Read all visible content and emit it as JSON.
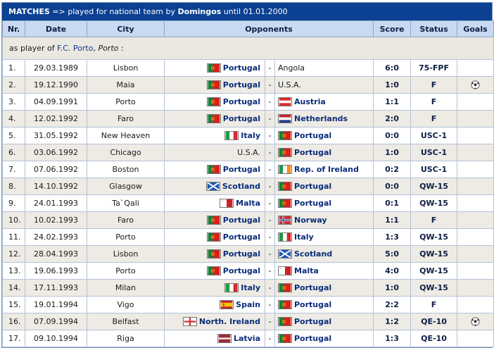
{
  "title": {
    "label": "MATCHES",
    "arrow": " => played for national team by ",
    "player": "Domingos",
    "until": " until 01.01.2000"
  },
  "columns": [
    "Nr.",
    "Date",
    "City",
    "Opponents",
    "Score",
    "Status",
    "Goals"
  ],
  "section": {
    "prefix": "as player of ",
    "club": "F.C. Porto",
    "sep": ", ",
    "city": "Porto",
    "suffix": " :"
  },
  "rows": [
    {
      "nr": "1.",
      "date": "29.03.1989",
      "city": "Lisbon",
      "home": "Portugal",
      "home_flag": "flag-portugal-icon",
      "away": "Angola",
      "away_flag": "",
      "score": "6:0",
      "status": "75-FPF",
      "goal": false
    },
    {
      "nr": "2.",
      "date": "19.12.1990",
      "city": "Maia",
      "home": "Portugal",
      "home_flag": "flag-portugal-icon",
      "away": "U.S.A.",
      "away_flag": "",
      "score": "1:0",
      "status": "F",
      "goal": true
    },
    {
      "nr": "3.",
      "date": "04.09.1991",
      "city": "Porto",
      "home": "Portugal",
      "home_flag": "flag-portugal-icon",
      "away": "Austria",
      "away_flag": "flag-austria-icon",
      "score": "1:1",
      "status": "F",
      "goal": false
    },
    {
      "nr": "4.",
      "date": "12.02.1992",
      "city": "Faro",
      "home": "Portugal",
      "home_flag": "flag-portugal-icon",
      "away": "Netherlands",
      "away_flag": "flag-netherlands-icon",
      "score": "2:0",
      "status": "F",
      "goal": false
    },
    {
      "nr": "5.",
      "date": "31.05.1992",
      "city": "New Heaven",
      "home": "Italy",
      "home_flag": "flag-italy-icon",
      "away": "Portugal",
      "away_flag": "flag-portugal-icon",
      "score": "0:0",
      "status": "USC-1",
      "goal": false
    },
    {
      "nr": "6.",
      "date": "03.06.1992",
      "city": "Chicago",
      "home": "U.S.A.",
      "home_flag": "",
      "away": "Portugal",
      "away_flag": "flag-portugal-icon",
      "score": "1:0",
      "status": "USC-1",
      "goal": false
    },
    {
      "nr": "7.",
      "date": "07.06.1992",
      "city": "Boston",
      "home": "Portugal",
      "home_flag": "flag-portugal-icon",
      "away": "Rep. of Ireland",
      "away_flag": "flag-ireland-icon",
      "score": "0:2",
      "status": "USC-1",
      "goal": false
    },
    {
      "nr": "8.",
      "date": "14.10.1992",
      "city": "Glasgow",
      "home": "Scotland",
      "home_flag": "flag-scotland-icon",
      "away": "Portugal",
      "away_flag": "flag-portugal-icon",
      "score": "0:0",
      "status": "QW-15",
      "goal": false
    },
    {
      "nr": "9.",
      "date": "24.01.1993",
      "city": "Ta`Qali",
      "home": "Malta",
      "home_flag": "flag-malta-icon",
      "away": "Portugal",
      "away_flag": "flag-portugal-icon",
      "score": "0:1",
      "status": "QW-15",
      "goal": false
    },
    {
      "nr": "10.",
      "date": "10.02.1993",
      "city": "Faro",
      "home": "Portugal",
      "home_flag": "flag-portugal-icon",
      "away": "Norway",
      "away_flag": "flag-norway-icon",
      "score": "1:1",
      "status": "F",
      "goal": false
    },
    {
      "nr": "11.",
      "date": "24.02.1993",
      "city": "Porto",
      "home": "Portugal",
      "home_flag": "flag-portugal-icon",
      "away": "Italy",
      "away_flag": "flag-italy-icon",
      "score": "1:3",
      "status": "QW-15",
      "goal": false
    },
    {
      "nr": "12.",
      "date": "28.04.1993",
      "city": "Lisbon",
      "home": "Portugal",
      "home_flag": "flag-portugal-icon",
      "away": "Scotland",
      "away_flag": "flag-scotland-icon",
      "score": "5:0",
      "status": "QW-15",
      "goal": false
    },
    {
      "nr": "13.",
      "date": "19.06.1993",
      "city": "Porto",
      "home": "Portugal",
      "home_flag": "flag-portugal-icon",
      "away": "Malta",
      "away_flag": "flag-malta-icon",
      "score": "4:0",
      "status": "QW-15",
      "goal": false
    },
    {
      "nr": "14.",
      "date": "17.11.1993",
      "city": "Milan",
      "home": "Italy",
      "home_flag": "flag-italy-icon",
      "away": "Portugal",
      "away_flag": "flag-portugal-icon",
      "score": "1:0",
      "status": "QW-15",
      "goal": false
    },
    {
      "nr": "15.",
      "date": "19.01.1994",
      "city": "Vigo",
      "home": "Spain",
      "home_flag": "flag-spain-icon",
      "away": "Portugal",
      "away_flag": "flag-portugal-icon",
      "score": "2:2",
      "status": "F",
      "goal": false
    },
    {
      "nr": "16.",
      "date": "07.09.1994",
      "city": "Belfast",
      "home": "North. Ireland",
      "home_flag": "flag-england-icon",
      "away": "Portugal",
      "away_flag": "flag-portugal-icon",
      "score": "1:2",
      "status": "QE-10",
      "goal": true
    },
    {
      "nr": "17.",
      "date": "09.10.1994",
      "city": "Riga",
      "home": "Latvia",
      "home_flag": "flag-latvia-icon",
      "away": "Portugal",
      "away_flag": "flag-portugal-icon",
      "score": "1:3",
      "status": "QE-10",
      "goal": false
    }
  ],
  "highlight_team": "Portugal",
  "goal_icon": "football-icon",
  "colors": {
    "title_bg": "#0b4093",
    "header_bg": "#c9d9f1",
    "row_alt": "#eeebe4",
    "team_text": "#0b2d7a"
  }
}
